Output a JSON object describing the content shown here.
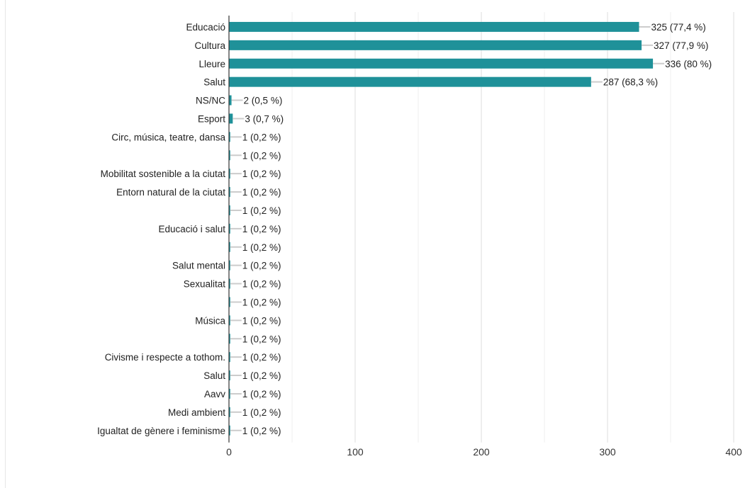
{
  "chart_data": {
    "type": "bar",
    "orientation": "horizontal",
    "categories": [
      "Educació",
      "Cultura",
      "Lleure",
      "Salut",
      "NS/NC",
      "Esport",
      "Circ, música, teatre, dansa",
      "",
      "Mobilitat sostenible a la ciutat",
      "Entorn natural de la ciutat",
      "",
      "Educació i salut",
      "",
      "Salut mental",
      "Sexualitat",
      "",
      "Música",
      "",
      "Civisme i respecte a tothom.",
      "Salut",
      "Aavv",
      "Medi ambient",
      "Igualtat de gènere i feminisme"
    ],
    "values": [
      325,
      327,
      336,
      287,
      2,
      3,
      1,
      1,
      1,
      1,
      1,
      1,
      1,
      1,
      1,
      1,
      1,
      1,
      1,
      1,
      1,
      1,
      1
    ],
    "value_labels": [
      "325 (77,4 %)",
      "327 (77,9 %)",
      "336 (80 %)",
      "287 (68,3 %)",
      "2 (0,5 %)",
      "3 (0,7 %)",
      "1 (0,2 %)",
      "1 (0,2 %)",
      "1 (0,2 %)",
      "1 (0,2 %)",
      "1 (0,2 %)",
      "1 (0,2 %)",
      "1 (0,2 %)",
      "1 (0,2 %)",
      "1 (0,2 %)",
      "1 (0,2 %)",
      "1 (0,2 %)",
      "1 (0,2 %)",
      "1 (0,2 %)",
      "1 (0,2 %)",
      "1 (0,2 %)",
      "1 (0,2 %)",
      "1 (0,2 %)"
    ],
    "xlim": [
      0,
      400
    ],
    "xticks": [
      0,
      100,
      200,
      300,
      400
    ],
    "grid": true,
    "bar_color": "#1f9199",
    "connector_color": "#cccccc",
    "title": "",
    "xlabel": "",
    "ylabel": ""
  }
}
